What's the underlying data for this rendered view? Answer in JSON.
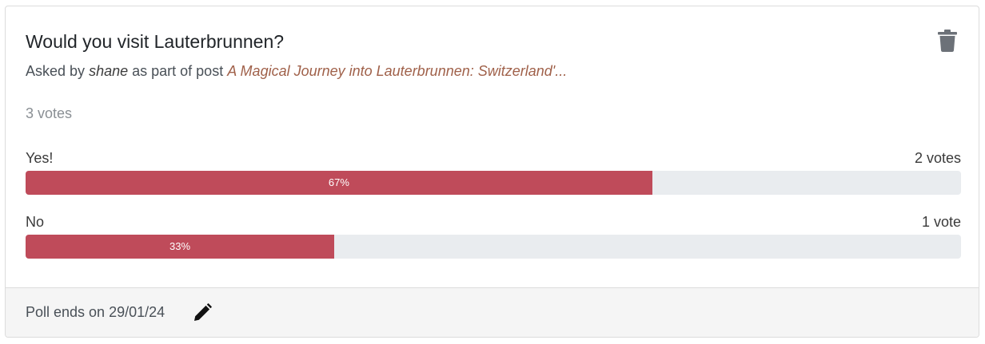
{
  "poll": {
    "title": "Would you visit Lauterbrunnen?",
    "asked_prefix": "Asked by",
    "author": "shane",
    "asked_middle": "as part of post",
    "post_title": "A Magical Journey into Lauterbrunnen: Switzerland'...",
    "total_votes": "3 votes",
    "delete_icon": "trash-icon",
    "options": [
      {
        "label": "Yes!",
        "count": "2 votes",
        "percent_label": "67%",
        "fraction": 0.67
      },
      {
        "label": "No",
        "count": "1 vote",
        "percent_label": "33%",
        "fraction": 0.33
      }
    ]
  },
  "footer": {
    "ends_text": "Poll ends on 29/01/24",
    "edit_icon": "pencil-icon"
  },
  "colors": {
    "bar_fill": "#bf4b5a",
    "bar_track": "#e9ecef",
    "link": "#a0614a"
  }
}
